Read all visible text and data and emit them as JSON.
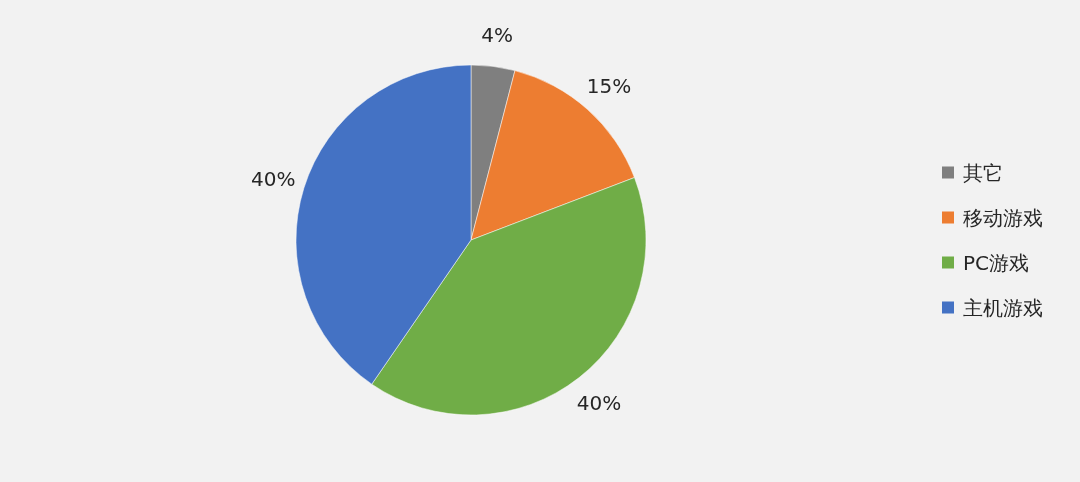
{
  "chart_data": {
    "type": "pie",
    "categories": [
      "其它",
      "移动游戏",
      "PC游戏",
      "主机游戏"
    ],
    "values": [
      4,
      15,
      40,
      40
    ],
    "colors": [
      "#7f7f7f",
      "#ed7d31",
      "#70ad47",
      "#4472c4"
    ],
    "value_labels": [
      "4%",
      "15%",
      "40%",
      "40%"
    ],
    "legend": "right"
  }
}
